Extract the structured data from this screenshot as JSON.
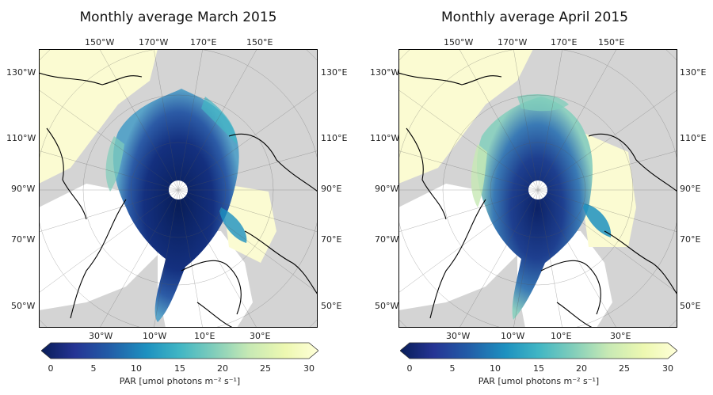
{
  "panels": [
    {
      "title": "Monthly average March 2015",
      "lon_labels_top": [
        "150°W",
        "170°W",
        "170°E",
        "150°E"
      ],
      "lon_labels_bottom": [
        "30°W",
        "10°W",
        "10°E",
        "30°E"
      ],
      "lon_labels_left": [
        "130°W",
        "110°W",
        "90°W",
        "70°W",
        "50°W"
      ],
      "lon_labels_right": [
        "130°E",
        "110°E",
        "90°E",
        "70°E",
        "50°E"
      ],
      "colorbar": {
        "ticks": [
          "0",
          "5",
          "10",
          "15",
          "20",
          "25",
          "30"
        ],
        "label": "PAR [umol photons m⁻² s⁻¹]"
      }
    },
    {
      "title": "Monthly average April 2015",
      "lon_labels_top": [
        "150°W",
        "170°W",
        "170°E",
        "150°E"
      ],
      "lon_labels_bottom": [
        "30°W",
        "10°W",
        "10°E",
        "30°E"
      ],
      "lon_labels_left": [
        "130°W",
        "110°W",
        "90°W",
        "70°W",
        "50°W"
      ],
      "lon_labels_right": [
        "130°E",
        "110°E",
        "90°E",
        "70°E",
        "50°E"
      ],
      "colorbar": {
        "ticks": [
          "0",
          "5",
          "10",
          "15",
          "20",
          "25",
          "30"
        ],
        "label": "PAR [umol photons m⁻² s⁻¹]"
      }
    }
  ],
  "colors": {
    "land": "#d4d4d4",
    "ocean_high_par": "#fbfbd2",
    "colormap": [
      "#081d58",
      "#253494",
      "#225ea8",
      "#1d91c0",
      "#41b6c4",
      "#7fcdbb",
      "#c7e9b4",
      "#edf8b1",
      "#ffffd9"
    ]
  }
}
